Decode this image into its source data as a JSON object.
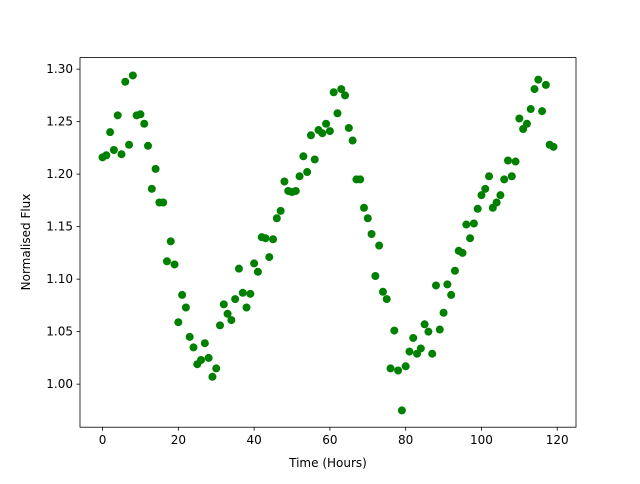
{
  "chart_data": {
    "type": "scatter",
    "x_label": "Time (Hours)",
    "y_label": "Normalised Flux",
    "color": "#008000",
    "x": [
      0,
      1,
      2,
      3,
      4,
      5,
      6,
      7,
      8,
      9,
      10,
      11,
      12,
      13,
      14,
      15,
      16,
      17,
      18,
      19,
      20,
      21,
      22,
      23,
      24,
      25,
      26,
      27,
      28,
      29,
      30,
      31,
      32,
      33,
      34,
      35,
      36,
      37,
      38,
      39,
      40,
      41,
      42,
      43,
      44,
      45,
      46,
      47,
      48,
      49,
      50,
      51,
      52,
      53,
      54,
      55,
      56,
      57,
      58,
      59,
      60,
      61,
      62,
      63,
      64,
      65,
      66,
      67,
      68,
      69,
      70,
      71,
      72,
      73,
      74,
      75,
      76,
      77,
      78,
      79,
      80,
      81,
      82,
      83,
      84,
      85,
      86,
      87,
      88,
      89,
      90,
      91,
      92,
      93,
      94,
      95,
      96,
      97,
      98,
      99,
      100,
      101,
      102,
      103,
      104,
      105,
      106,
      107,
      108,
      109,
      110,
      111,
      112,
      113,
      114,
      115,
      116,
      117,
      118,
      119
    ],
    "values": [
      1.216,
      1.218,
      1.24,
      1.223,
      1.256,
      1.219,
      1.288,
      1.228,
      1.294,
      1.256,
      1.257,
      1.248,
      1.227,
      1.186,
      1.205,
      1.173,
      1.173,
      1.117,
      1.136,
      1.114,
      1.059,
      1.085,
      1.073,
      1.045,
      1.035,
      1.019,
      1.023,
      1.039,
      1.025,
      1.007,
      1.015,
      1.056,
      1.076,
      1.067,
      1.061,
      1.081,
      1.11,
      1.087,
      1.073,
      1.086,
      1.115,
      1.107,
      1.14,
      1.139,
      1.121,
      1.138,
      1.158,
      1.165,
      1.193,
      1.184,
      1.183,
      1.184,
      1.198,
      1.217,
      1.202,
      1.237,
      1.214,
      1.242,
      1.239,
      1.248,
      1.241,
      1.278,
      1.258,
      1.281,
      1.275,
      1.244,
      1.232,
      1.195,
      1.195,
      1.168,
      1.158,
      1.143,
      1.103,
      1.132,
      1.088,
      1.081,
      1.015,
      1.051,
      1.013,
      0.975,
      1.017,
      1.031,
      1.044,
      1.029,
      1.034,
      1.057,
      1.05,
      1.029,
      1.094,
      1.052,
      1.068,
      1.095,
      1.085,
      1.108,
      1.127,
      1.125,
      1.152,
      1.139,
      1.153,
      1.167,
      1.18,
      1.186,
      1.198,
      1.168,
      1.173,
      1.18,
      1.195,
      1.213,
      1.198,
      1.212,
      1.253,
      1.243,
      1.248,
      1.262,
      1.281,
      1.29,
      1.26,
      1.285,
      1.228,
      1.226
    ],
    "xlim": [
      -5.95,
      124.95
    ],
    "xticks": [
      0,
      20,
      40,
      60,
      80,
      100,
      120
    ],
    "ylim": [
      0.959,
      1.311
    ],
    "yticks": [
      {
        "value": 1,
        "label": "1.00"
      },
      1.05,
      {
        "value": 1.1,
        "label": "1.10"
      },
      1.15,
      {
        "value": 1.2,
        "label": "1.20"
      },
      1.25,
      {
        "value": 1.3,
        "label": "1.30"
      }
    ]
  }
}
